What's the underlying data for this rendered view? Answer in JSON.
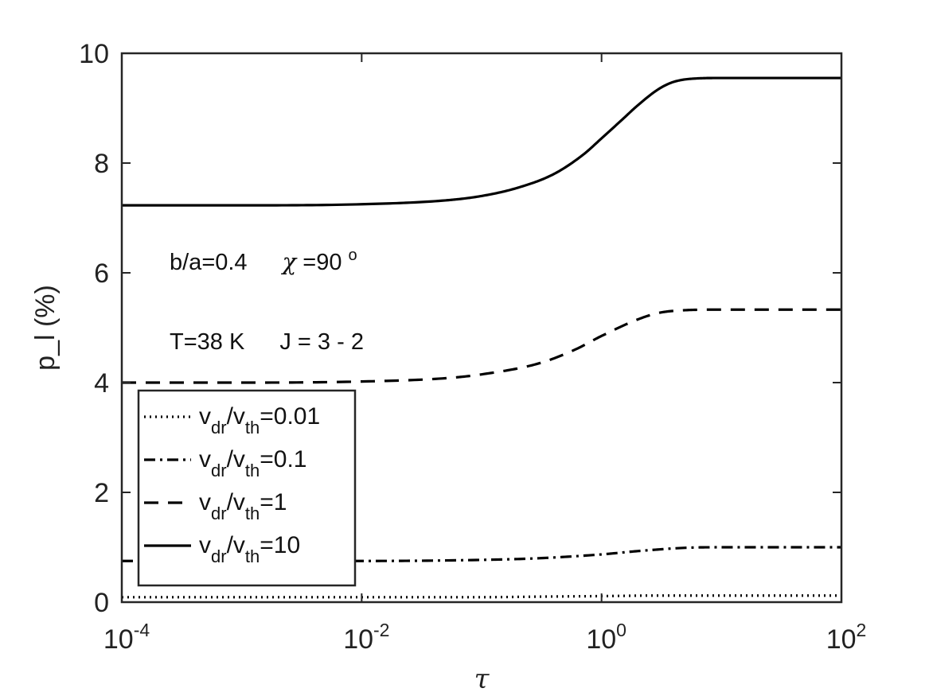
{
  "chart_data": {
    "type": "line",
    "xscale": "log",
    "xlim": [
      0.0001,
      100
    ],
    "ylim": [
      0,
      10
    ],
    "xlabel": "τ",
    "ylabel": "p_l (%)",
    "xticks": [
      {
        "base": "10",
        "exp": "-4",
        "value": 0.0001
      },
      {
        "base": "10",
        "exp": "-2",
        "value": 0.01
      },
      {
        "base": "10",
        "exp": "0",
        "value": 1
      },
      {
        "base": "10",
        "exp": "2",
        "value": 100
      }
    ],
    "yticks": [
      "0",
      "2",
      "4",
      "6",
      "8",
      "10"
    ],
    "annotations": [
      {
        "text": "b/a=0.4",
        "chi_symbol": "χ",
        "chi_value": "=90",
        "chi_sup": "o"
      },
      {
        "line1": "T=38 K",
        "line2": "J = 3 - 2"
      }
    ],
    "legend_position": "bottom-left",
    "series": [
      {
        "name": "vdr/vth=0.01",
        "v1": "v",
        "s1": "dr",
        "slash": "/",
        "v2": "v",
        "s2": "th",
        "val": "=0.01",
        "dash": "2,5",
        "x": [
          0.0001,
          0.001,
          0.01,
          0.1,
          0.3,
          1,
          3,
          10,
          100
        ],
        "y": [
          0.09,
          0.09,
          0.09,
          0.09,
          0.1,
          0.11,
          0.12,
          0.12,
          0.12
        ]
      },
      {
        "name": "vdr/vth=0.1",
        "v1": "v",
        "s1": "dr",
        "slash": "/",
        "v2": "v",
        "s2": "th",
        "val": "=0.1",
        "dash": "14,6,3,6",
        "x": [
          0.0001,
          0.001,
          0.01,
          0.1,
          0.3,
          1,
          2,
          5,
          10,
          100
        ],
        "y": [
          0.75,
          0.75,
          0.75,
          0.77,
          0.8,
          0.87,
          0.93,
          0.99,
          1.0,
          1.0
        ]
      },
      {
        "name": "vdr/vth=1",
        "v1": "v",
        "s1": "dr",
        "slash": "/",
        "v2": "v",
        "s2": "th",
        "val": "=1",
        "dash": "18,12",
        "x": [
          0.0001,
          0.001,
          0.01,
          0.05,
          0.1,
          0.3,
          0.6,
          1,
          2,
          3,
          5,
          10,
          100
        ],
        "y": [
          4.0,
          4.0,
          4.02,
          4.08,
          4.15,
          4.35,
          4.6,
          4.85,
          5.15,
          5.27,
          5.32,
          5.33,
          5.33
        ]
      },
      {
        "name": "vdr/vth=10",
        "v1": "v",
        "s1": "dr",
        "slash": "/",
        "v2": "v",
        "s2": "th",
        "val": "=10",
        "dash": "",
        "x": [
          0.0001,
          0.001,
          0.01,
          0.05,
          0.1,
          0.2,
          0.4,
          0.7,
          1,
          1.5,
          2,
          3,
          4,
          6,
          10,
          100
        ],
        "y": [
          7.23,
          7.23,
          7.25,
          7.32,
          7.4,
          7.55,
          7.8,
          8.15,
          8.45,
          8.8,
          9.05,
          9.35,
          9.48,
          9.54,
          9.55,
          9.55
        ]
      }
    ]
  }
}
